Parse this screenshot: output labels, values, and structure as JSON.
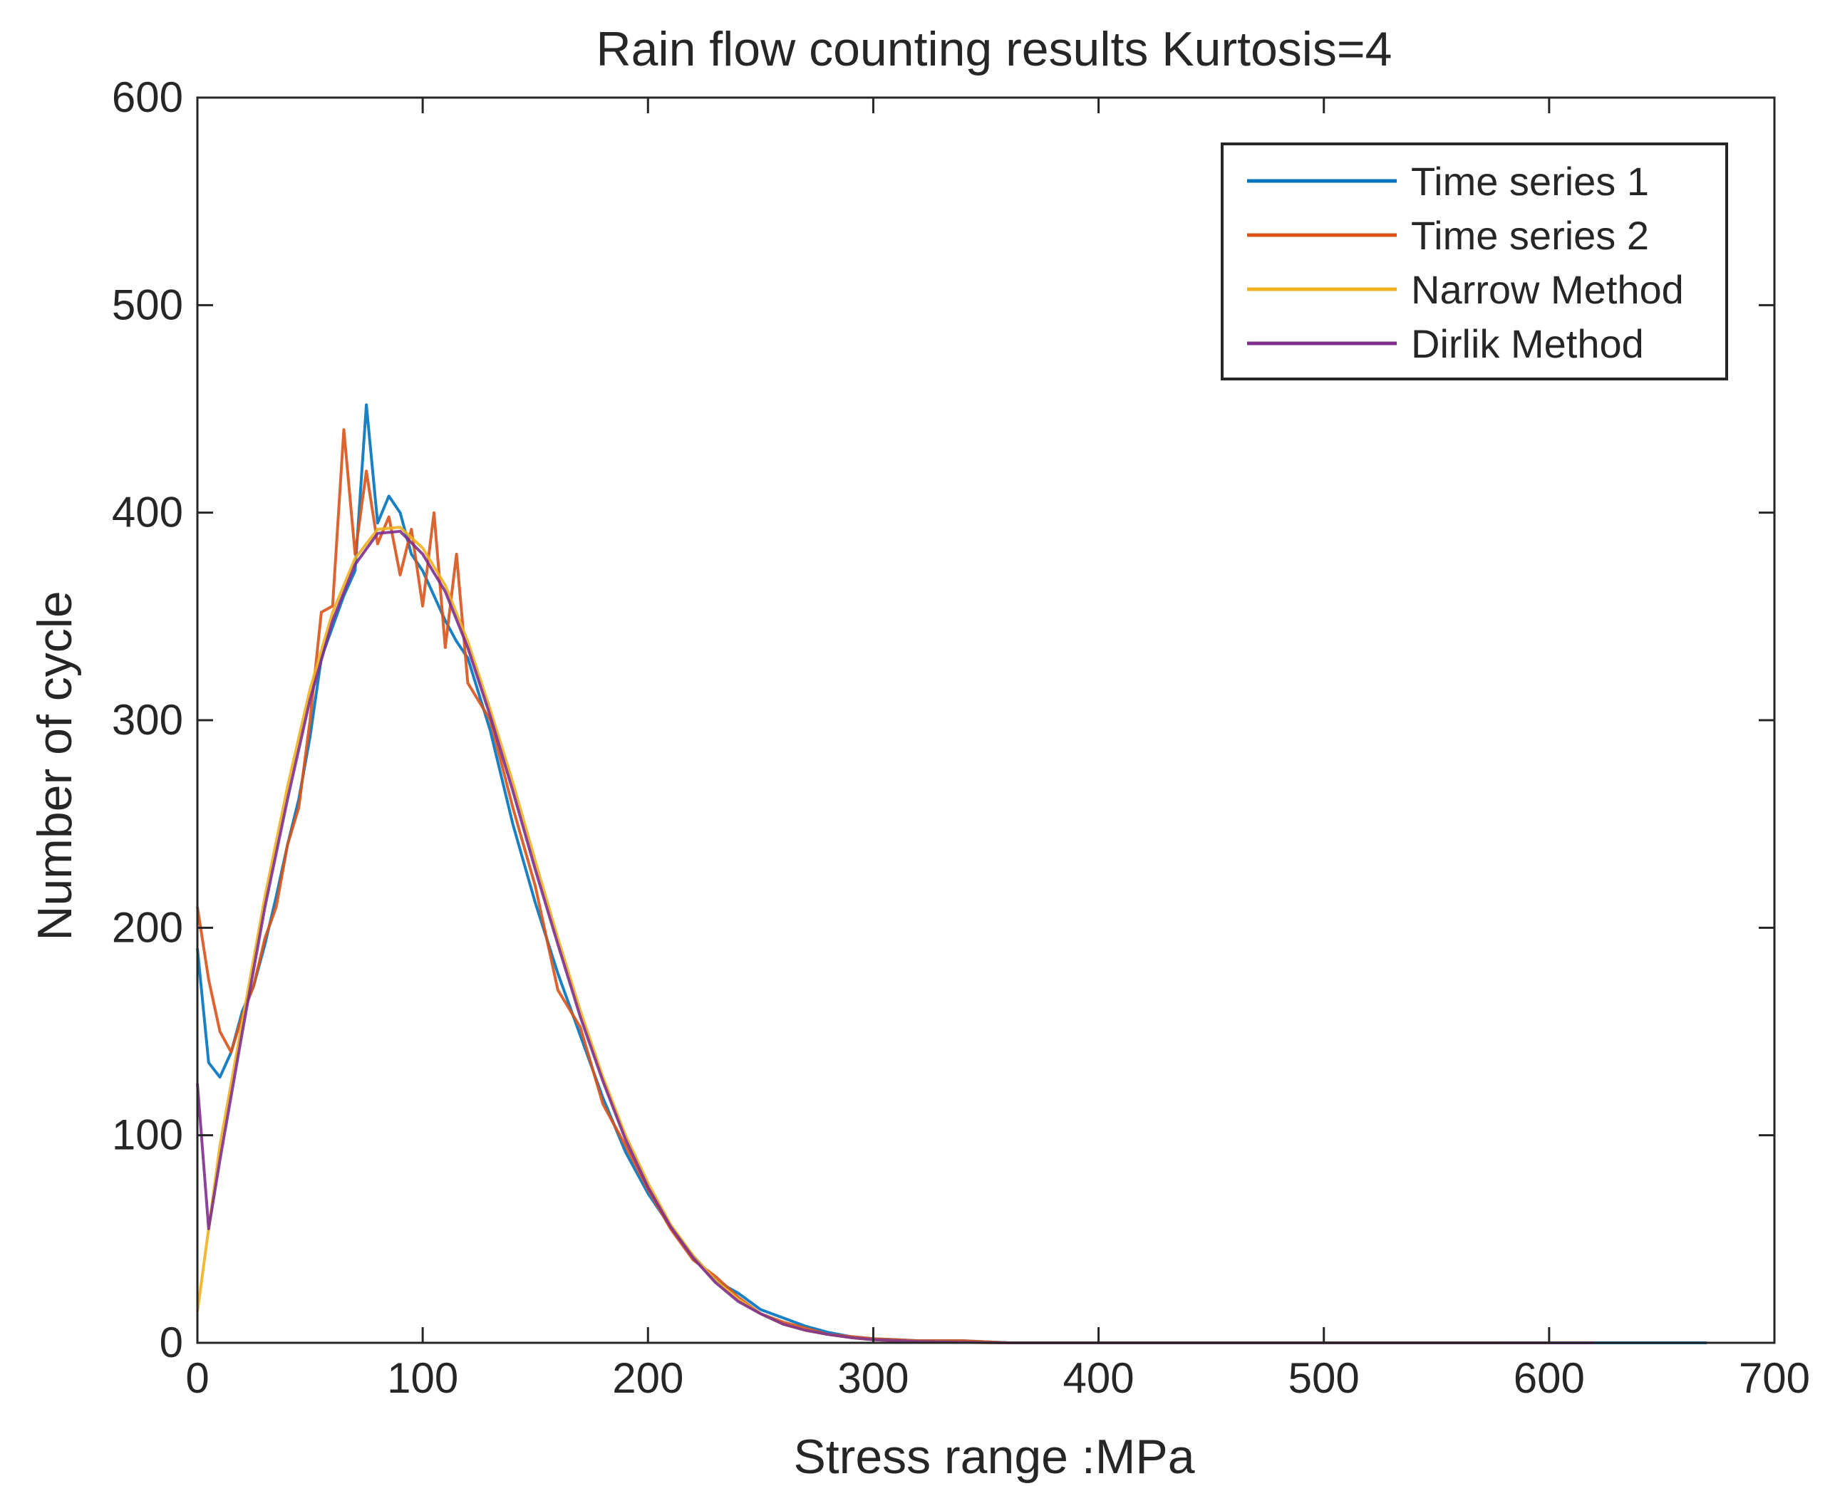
{
  "chart_data": {
    "type": "line",
    "title": "Rain flow counting results Kurtosis=4",
    "xlabel": "Stress range :MPa",
    "ylabel": "Number of cycle",
    "xlim": [
      0,
      700
    ],
    "ylim": [
      0,
      600
    ],
    "xticks": [
      0,
      100,
      200,
      300,
      400,
      500,
      600,
      700
    ],
    "yticks": [
      0,
      100,
      200,
      300,
      400,
      500,
      600
    ],
    "xtick_labels": [
      "0",
      "100",
      "200",
      "300",
      "400",
      "500",
      "600",
      "700"
    ],
    "ytick_labels": [
      "0",
      "100",
      "200",
      "300",
      "400",
      "500",
      "600"
    ],
    "legend_position": "top-right",
    "series": [
      {
        "name": "Time series 1",
        "color": "#0072BD",
        "x": [
          0,
          5,
          10,
          15,
          20,
          25,
          30,
          35,
          40,
          45,
          50,
          55,
          60,
          65,
          70,
          75,
          80,
          85,
          90,
          95,
          100,
          105,
          110,
          115,
          120,
          130,
          140,
          150,
          160,
          170,
          180,
          190,
          200,
          210,
          220,
          230,
          240,
          250,
          260,
          270,
          280,
          290,
          300,
          320,
          340,
          360,
          380,
          400,
          450,
          500,
          550,
          600,
          650,
          670
        ],
        "y": [
          190,
          135,
          128,
          140,
          160,
          172,
          192,
          215,
          240,
          262,
          292,
          330,
          345,
          360,
          372,
          452,
          395,
          408,
          400,
          380,
          372,
          360,
          348,
          338,
          330,
          295,
          250,
          212,
          178,
          148,
          118,
          92,
          72,
          56,
          42,
          30,
          24,
          16,
          12,
          8,
          5,
          3,
          2,
          1,
          1,
          0,
          0,
          0,
          0,
          0,
          0,
          0,
          0,
          0
        ]
      },
      {
        "name": "Time series 2",
        "color": "#D95319",
        "x": [
          0,
          5,
          10,
          15,
          20,
          25,
          30,
          35,
          40,
          45,
          50,
          55,
          60,
          65,
          70,
          75,
          80,
          85,
          90,
          95,
          100,
          105,
          110,
          115,
          120,
          130,
          140,
          150,
          160,
          170,
          180,
          190,
          200,
          210,
          220,
          230,
          240,
          250,
          260,
          270,
          280,
          290,
          300,
          320,
          340,
          360,
          380,
          400,
          450,
          500,
          550,
          580
        ],
        "y": [
          210,
          175,
          150,
          140,
          158,
          172,
          195,
          210,
          240,
          258,
          300,
          352,
          355,
          440,
          380,
          420,
          385,
          398,
          370,
          392,
          355,
          400,
          335,
          380,
          318,
          300,
          258,
          220,
          170,
          152,
          115,
          95,
          74,
          55,
          40,
          32,
          22,
          14,
          10,
          7,
          4,
          3,
          2,
          1,
          1,
          0,
          0,
          0,
          0,
          0,
          0,
          0
        ]
      },
      {
        "name": "Narrow Method",
        "color": "#EDB120",
        "x": [
          0,
          5,
          10,
          20,
          30,
          40,
          50,
          60,
          70,
          80,
          90,
          100,
          110,
          120,
          130,
          140,
          150,
          160,
          170,
          180,
          190,
          200,
          210,
          220,
          230,
          240,
          250,
          260,
          270,
          280,
          290,
          300,
          320,
          340,
          360,
          400,
          500,
          600
        ],
        "y": [
          15,
          55,
          95,
          155,
          215,
          268,
          315,
          352,
          378,
          392,
          393,
          383,
          365,
          338,
          305,
          270,
          232,
          195,
          160,
          128,
          100,
          77,
          57,
          42,
          30,
          21,
          14,
          9,
          6,
          4,
          2.5,
          1.5,
          0.6,
          0.2,
          0,
          0,
          0,
          0
        ]
      },
      {
        "name": "Dirlik Method",
        "color": "#7E2F8E",
        "x": [
          0,
          5,
          10,
          20,
          30,
          40,
          50,
          60,
          70,
          80,
          90,
          100,
          110,
          120,
          130,
          140,
          150,
          160,
          170,
          180,
          190,
          200,
          210,
          220,
          230,
          240,
          250,
          260,
          270,
          280,
          290,
          300,
          320,
          340,
          360,
          400,
          500,
          620
        ],
        "y": [
          125,
          55,
          88,
          150,
          210,
          262,
          310,
          348,
          375,
          390,
          391,
          380,
          362,
          335,
          302,
          266,
          228,
          192,
          157,
          126,
          98,
          75,
          56,
          41,
          29,
          20,
          14,
          9,
          6,
          4,
          2.5,
          1.5,
          0.6,
          0.2,
          0,
          0,
          0,
          0
        ]
      }
    ]
  }
}
